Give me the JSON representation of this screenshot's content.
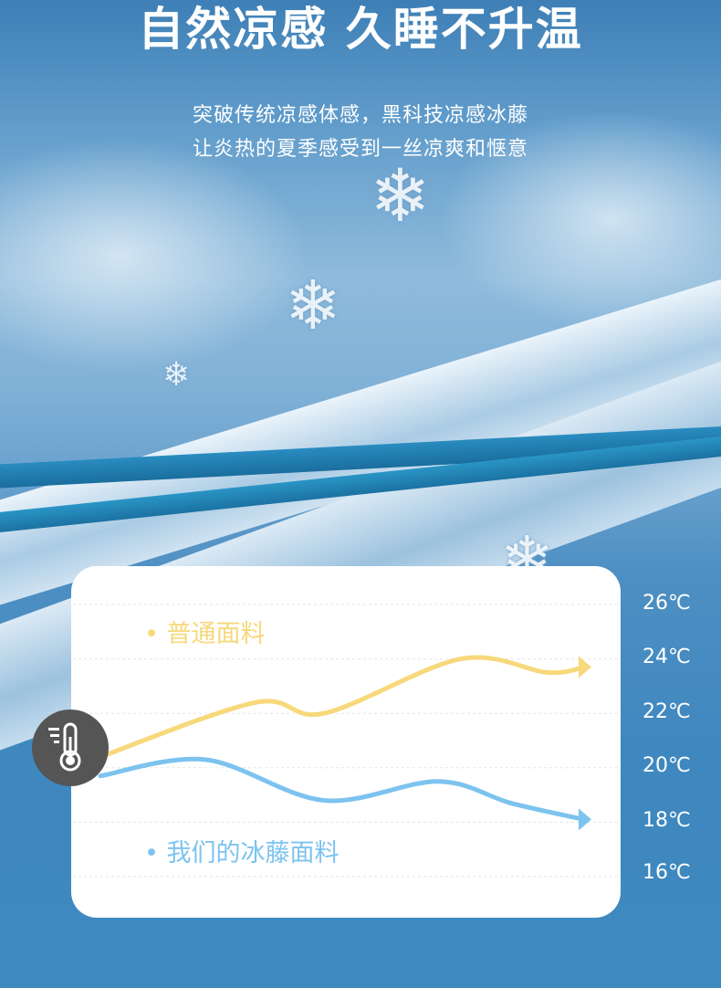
{
  "header": {
    "title": "自然凉感 久睡不升温",
    "subtitle_lines": [
      "突破传统凉感体感，黑科技凉感冰藤",
      "让炎热的夏季感受到一丝凉爽和惬意"
    ]
  },
  "icons": [
    "snowflake-icon",
    "thermometer-icon"
  ],
  "colors": {
    "regular": "#f7d87a",
    "ours": "#7cc3ef",
    "background": "#3e89bf"
  },
  "chart_data": {
    "type": "line",
    "title": "",
    "xlabel": "",
    "ylabel": "",
    "ylim": [
      16,
      26
    ],
    "y_ticks": [
      "26℃",
      "24℃",
      "22℃",
      "20℃",
      "18℃",
      "16℃"
    ],
    "grid": true,
    "legend_placement": "inline",
    "x": [
      0,
      1,
      2,
      3,
      4,
      5
    ],
    "series": [
      {
        "name": "普通面料",
        "values": [
          20.4,
          22.4,
          22.0,
          24.0,
          23.5,
          23.7
        ]
      },
      {
        "name": "我们的冰藤面料",
        "values": [
          19.7,
          20.3,
          18.8,
          19.5,
          18.7,
          18.1
        ]
      }
    ]
  }
}
